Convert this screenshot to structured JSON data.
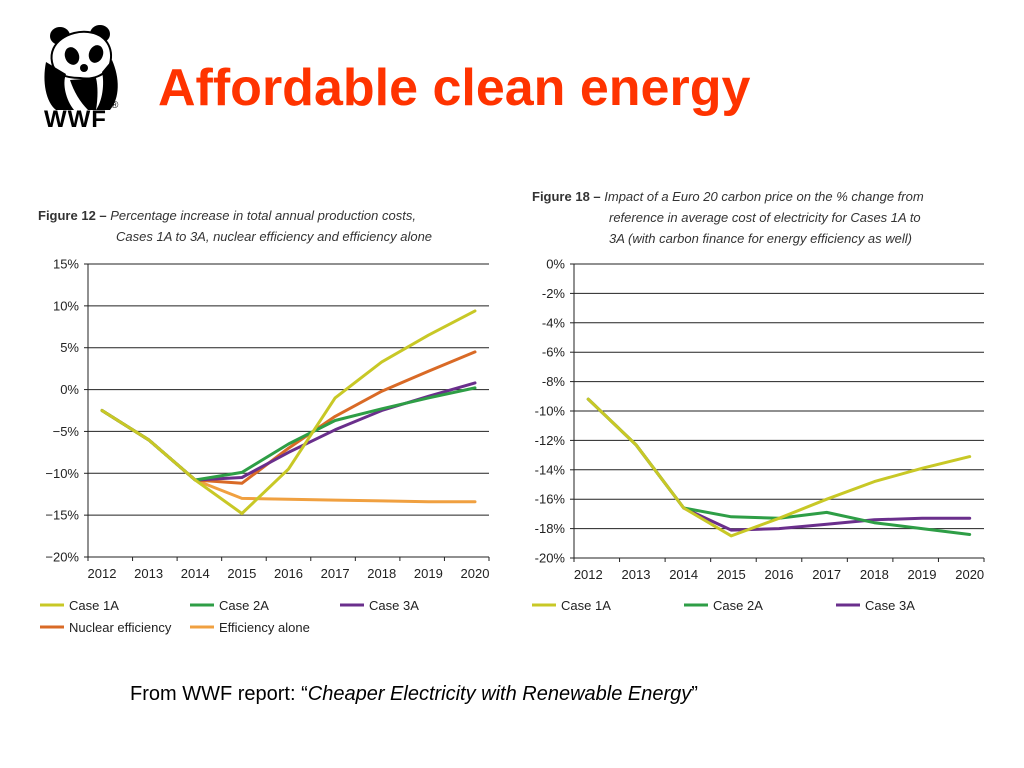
{
  "slide": {
    "title": "Affordable clean energy",
    "footer_prefix": "From WWF report: “",
    "footer_source": "Cheaper Electricity with Renewable Energy",
    "footer_suffix": "”"
  },
  "logo": {
    "text": "WWF",
    "mark": "®"
  },
  "colors": {
    "title": "#ff3300",
    "case1a": "#c8c826",
    "case2a": "#2e9e46",
    "case3a": "#6a2f8c",
    "nuclear": "#d96a26",
    "efficiency": "#f0a040"
  },
  "chart_data": [
    {
      "type": "line",
      "figure_label": "Figure 12 –",
      "title_line1": "Percentage increase in total annual production costs,",
      "title_line2": "Cases 1A to 3A, nuclear efficiency and efficiency alone",
      "x": [
        "2012",
        "2013",
        "2014",
        "2015",
        "2016",
        "2017",
        "2018",
        "2019",
        "2020"
      ],
      "ylim": [
        -20,
        15
      ],
      "yticks": [
        15,
        10,
        5,
        0,
        -5,
        -10,
        -15,
        -20
      ],
      "ytick_labels": [
        "15%",
        "10%",
        "5%",
        "0%",
        "−5%",
        "−10%",
        "−15%",
        "−20%"
      ],
      "grid": true,
      "legend_position": "bottom",
      "series": [
        {
          "name": "Case 1A",
          "color": "#c8c826",
          "values": [
            -2.5,
            -6,
            -10.8,
            -14.8,
            -9.5,
            -1,
            3.3,
            6.5,
            9.4
          ]
        },
        {
          "name": "Case 2A",
          "color": "#2e9e46",
          "values": [
            -2.5,
            -6,
            -10.8,
            -9.9,
            -6.5,
            -3.7,
            -2.3,
            -1,
            0.2
          ]
        },
        {
          "name": "Case 3A",
          "color": "#6a2f8c",
          "values": [
            -2.5,
            -6,
            -10.8,
            -10.5,
            -7.5,
            -4.8,
            -2.5,
            -0.8,
            0.8
          ]
        },
        {
          "name": "Nuclear efficiency",
          "color": "#d96a26",
          "values": [
            -2.5,
            -6,
            -10.8,
            -11.2,
            -7,
            -3.2,
            -0.2,
            2.2,
            4.5
          ]
        },
        {
          "name": "Efficiency alone",
          "color": "#f0a040",
          "values": [
            -2.5,
            -6,
            -10.8,
            -13,
            -13.1,
            -13.2,
            -13.3,
            -13.4,
            -13.4
          ]
        }
      ],
      "legend_rows": [
        [
          "Case 1A",
          "Case 2A",
          "Case 3A"
        ],
        [
          "Nuclear efficiency",
          "Efficiency alone"
        ]
      ]
    },
    {
      "type": "line",
      "figure_label": "Figure 18 –",
      "title_line1": "Impact of a Euro 20 carbon price on the % change from",
      "title_line2": "reference in average cost of electricity for Cases 1A to",
      "title_line3": "3A (with carbon finance for energy efficiency as well)",
      "x": [
        "2012",
        "2013",
        "2014",
        "2015",
        "2016",
        "2017",
        "2018",
        "2019",
        "2020"
      ],
      "ylim": [
        -20,
        0
      ],
      "yticks": [
        0,
        -2,
        -4,
        -6,
        -8,
        -10,
        -12,
        -14,
        -16,
        -18,
        -20
      ],
      "ytick_labels": [
        "0%",
        "-2%",
        "-4%",
        "-6%",
        "-8%",
        "-10%",
        "-12%",
        "-14%",
        "-16%",
        "-18%",
        "-20%"
      ],
      "grid": true,
      "legend_position": "bottom",
      "series": [
        {
          "name": "Case 1A",
          "color": "#c8c826",
          "values": [
            -9.2,
            -12.3,
            -16.6,
            -18.5,
            -17.3,
            -16,
            -14.8,
            -13.9,
            -13.1
          ]
        },
        {
          "name": "Case 2A",
          "color": "#2e9e46",
          "values": [
            -9.2,
            -12.3,
            -16.6,
            -17.2,
            -17.3,
            -16.9,
            -17.6,
            -18,
            -18.4
          ]
        },
        {
          "name": "Case 3A",
          "color": "#6a2f8c",
          "values": [
            -9.2,
            -12.3,
            -16.6,
            -18.1,
            -18,
            -17.7,
            -17.4,
            -17.3,
            -17.3
          ]
        }
      ],
      "legend_rows": [
        [
          "Case 1A",
          "Case 2A",
          "Case 3A"
        ]
      ]
    }
  ]
}
